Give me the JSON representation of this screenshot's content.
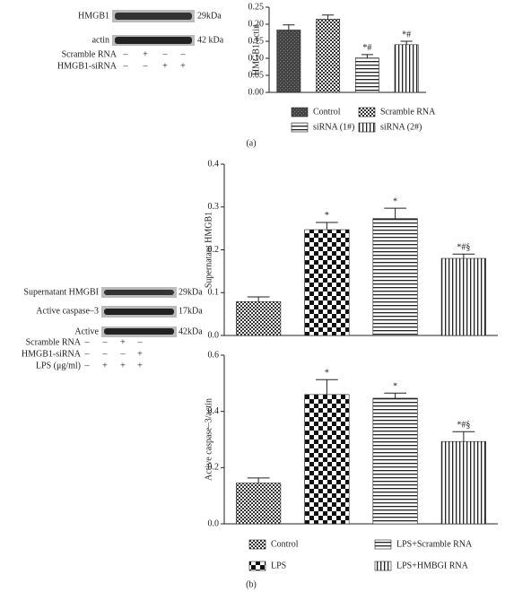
{
  "panel_labels": [
    "(a)",
    "(b)"
  ],
  "blot_a": {
    "rows": [
      "HMGB1",
      "actin"
    ],
    "sizes": [
      "29kDa",
      "42 kDa"
    ],
    "conditions": [
      {
        "label": "Scramble RNA",
        "signs": [
          "–",
          "+",
          "–",
          "–"
        ]
      },
      {
        "label": "HMGB1-siRNA",
        "signs": [
          "–",
          "–",
          "+",
          "+"
        ]
      }
    ]
  },
  "blot_b": {
    "rows": [
      "Supernatant HMGBI",
      "Active caspase–3",
      "Active"
    ],
    "sizes": [
      "29kDa",
      "17kDa",
      "42kDa"
    ],
    "conditions": [
      {
        "label": "Scramble RNA",
        "signs": [
          "–",
          "–",
          "+",
          "–"
        ]
      },
      {
        "label": "HMGB1-siRNA",
        "signs": [
          "–",
          "–",
          "–",
          "+"
        ]
      },
      {
        "label": "LPS (μg/ml)",
        "signs": [
          "–",
          "+",
          "+",
          "+"
        ]
      }
    ]
  },
  "chart_data": [
    {
      "type": "bar",
      "y_label": "HMGB1/actin",
      "categories": [
        "Control",
        "Scramble RNA",
        "siRNA (1#)",
        "siRNA (2#)"
      ],
      "values": [
        0.183,
        0.215,
        0.101,
        0.14
      ],
      "errors": [
        0.015,
        0.012,
        0.01,
        0.01
      ],
      "annotations": [
        null,
        null,
        "*#",
        "*#"
      ],
      "patterns": [
        "dark",
        "fine-check",
        "h-lines",
        "v-lines"
      ],
      "ylim": [
        0,
        0.25
      ],
      "yticks": [
        {
          "value": 0,
          "label": "0.00"
        },
        {
          "value": 0.05,
          "label": "0.05"
        },
        {
          "value": 0.1,
          "label": "0.10"
        },
        {
          "value": 0.15,
          "label": "0.15"
        },
        {
          "value": 0.2,
          "label": "0.20"
        },
        {
          "value": 0.25,
          "label": "0.25"
        }
      ],
      "legend": true
    },
    {
      "type": "bar",
      "y_label": "Supernatant HMGB1",
      "categories": [
        "Control",
        "LPS",
        "LPS+Scramble RNA",
        "LPS+HMBGI RNA"
      ],
      "values": [
        0.079,
        0.247,
        0.273,
        0.18
      ],
      "errors": [
        0.011,
        0.017,
        0.024,
        0.01
      ],
      "annotations": [
        null,
        "*",
        "*",
        "*#§"
      ],
      "patterns": [
        "fine-check",
        "check",
        "h-lines",
        "v-lines"
      ],
      "ylim": [
        0,
        0.4
      ],
      "yticks": [
        {
          "value": 0,
          "label": "0.0"
        },
        0.1,
        0.2,
        0.3,
        0.4
      ],
      "legend": false
    },
    {
      "type": "bar",
      "y_label": "Active caspase–3/actin",
      "categories": [
        "Control",
        "LPS",
        "LPS+Scramble RNA",
        "LPS+HMBGI RNA"
      ],
      "values": [
        0.145,
        0.46,
        0.447,
        0.293
      ],
      "errors": [
        0.018,
        0.053,
        0.018,
        0.035
      ],
      "annotations": [
        null,
        "*",
        "*",
        "*#§"
      ],
      "patterns": [
        "fine-check",
        "check",
        "h-lines",
        "v-lines"
      ],
      "ylim": [
        0,
        0.6
      ],
      "yticks": [
        {
          "value": 0,
          "label": "0.0"
        },
        0.2,
        0.4,
        0.6
      ],
      "legend": true
    }
  ]
}
